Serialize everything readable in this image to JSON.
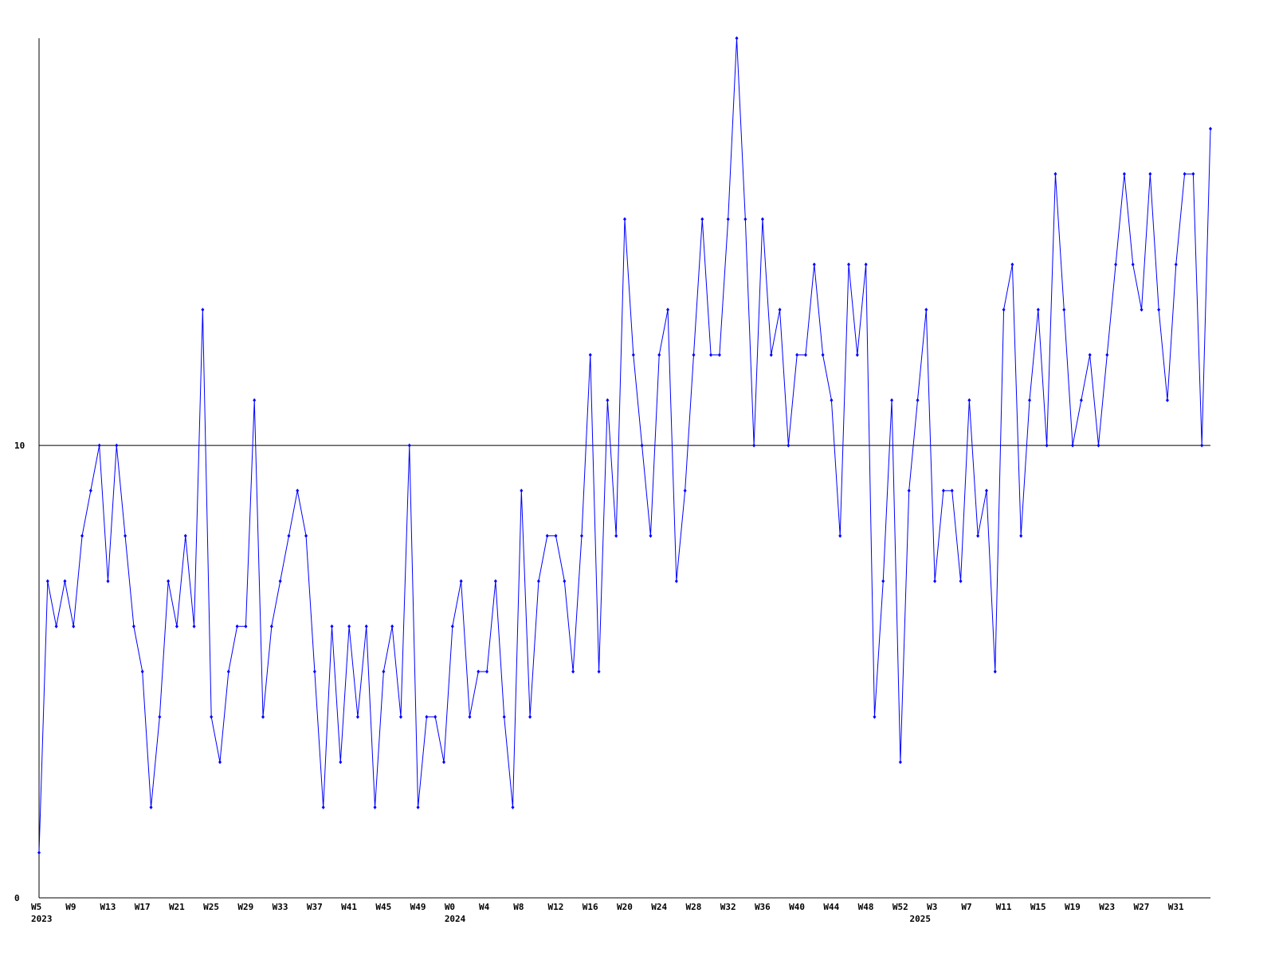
{
  "chart_data": {
    "type": "line",
    "categories": [
      "W5",
      null,
      null,
      null,
      "W9",
      null,
      null,
      null,
      "W13",
      null,
      null,
      null,
      "W17",
      null,
      null,
      null,
      "W21",
      null,
      null,
      null,
      "W25",
      null,
      null,
      null,
      "W29",
      null,
      null,
      null,
      "W33",
      null,
      null,
      null,
      "W37",
      null,
      null,
      null,
      "W41",
      null,
      null,
      null,
      "W45",
      null,
      null,
      null,
      "W49",
      null,
      null,
      null,
      "W0",
      null,
      null,
      null,
      "W4",
      null,
      null,
      null,
      "W8",
      null,
      null,
      null,
      "W12",
      null,
      null,
      null,
      "W16",
      null,
      null,
      null,
      "W20",
      null,
      null,
      null,
      "W24",
      null,
      null,
      null,
      "W28",
      null,
      null,
      null,
      "W32",
      null,
      null,
      null,
      "W36",
      null,
      null,
      null,
      "W40",
      null,
      null,
      null,
      "W44",
      null,
      null,
      null,
      "W48",
      null,
      null,
      null,
      "W52",
      null,
      null,
      null,
      "W3",
      null,
      null,
      null,
      "W7",
      null,
      null,
      null,
      "W11",
      null,
      null,
      null,
      "W15",
      null,
      null,
      null,
      "W19",
      null,
      null,
      null,
      "W23",
      null,
      null,
      null,
      "W27",
      null,
      null,
      null,
      "W31",
      null,
      null,
      null,
      null
    ],
    "year_labels": [
      "2023",
      null,
      null,
      null,
      null,
      null,
      null,
      null,
      null,
      null,
      null,
      null,
      null,
      null,
      null,
      null,
      null,
      null,
      null,
      null,
      null,
      null,
      null,
      null,
      null,
      null,
      null,
      null,
      null,
      null,
      null,
      null,
      null,
      null,
      null,
      null,
      null,
      null,
      null,
      null,
      null,
      null,
      null,
      null,
      null,
      null,
      null,
      null,
      "2024",
      null,
      null,
      null,
      null,
      null,
      null,
      null,
      null,
      null,
      null,
      null,
      null,
      null,
      null,
      null,
      null,
      null,
      null,
      null,
      null,
      null,
      null,
      null,
      null,
      null,
      null,
      null,
      null,
      null,
      null,
      null,
      null,
      null,
      null,
      null,
      null,
      null,
      null,
      null,
      null,
      null,
      null,
      null,
      null,
      null,
      null,
      null,
      null,
      null,
      null,
      null,
      null,
      null,
      "2025",
      null,
      null,
      null,
      null,
      null,
      null,
      null,
      null,
      null,
      null,
      null,
      null,
      null,
      null,
      null,
      null,
      null,
      null,
      null,
      null,
      null,
      null,
      null,
      null,
      null,
      null,
      null,
      null,
      null,
      null,
      null,
      null,
      null,
      null,
      null,
      null
    ],
    "series": [
      {
        "color": "#0000ff",
        "values": [
          1,
          7,
          6,
          7,
          6,
          8,
          9,
          10,
          7,
          10,
          8,
          6,
          5,
          2,
          4,
          7,
          6,
          8,
          6,
          13,
          4,
          3,
          5,
          6,
          6,
          11,
          4,
          6,
          7,
          8,
          9,
          8,
          5,
          2,
          6,
          3,
          6,
          4,
          6,
          2,
          5,
          6,
          4,
          10,
          2,
          4,
          4,
          3,
          6,
          7,
          4,
          5,
          5,
          7,
          4,
          2,
          9,
          4,
          7,
          8,
          8,
          7,
          5,
          8,
          12,
          5,
          11,
          8,
          15,
          12,
          10,
          8,
          12,
          13,
          7,
          9,
          12,
          15,
          12,
          12,
          15,
          19,
          15,
          10,
          15,
          12,
          13,
          10,
          12,
          12,
          14,
          12,
          11,
          8,
          14,
          12,
          14,
          4,
          7,
          11,
          3,
          9,
          11,
          13,
          7,
          9,
          9,
          7,
          11,
          8,
          9,
          5,
          13,
          14,
          8,
          11,
          13,
          10,
          16,
          13,
          10,
          11,
          12,
          10,
          12,
          14,
          16,
          14,
          13,
          16,
          13,
          11,
          14,
          16,
          16,
          10,
          17
        ]
      }
    ],
    "ylim": [
      0,
      19
    ],
    "yticks": [
      0,
      10
    ],
    "grid": true
  }
}
